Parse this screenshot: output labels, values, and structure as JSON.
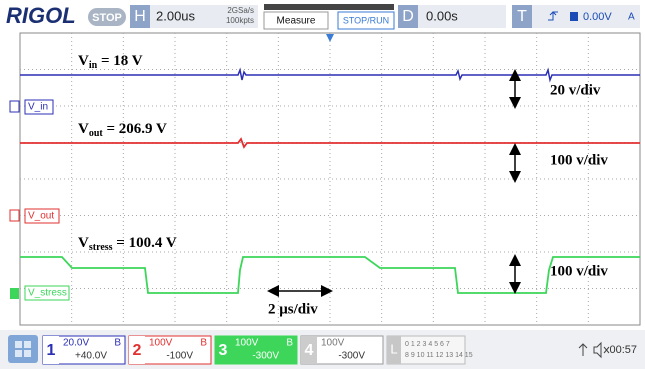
{
  "header": {
    "brand": "RIGOL",
    "state": "STOP",
    "h_key": "H",
    "timebase": "2.00us",
    "sample_rate": "2GSa/s",
    "memory": "100kpts",
    "measure": "Measure",
    "run": "STOP/RUN",
    "d_key": "D",
    "delay": "0.00s",
    "t_key": "T",
    "trigger_level": "0.00V",
    "trigger_mode": "A"
  },
  "annotations": [
    {
      "symbol": "V",
      "subscript": "in",
      "rest": " = 18 V"
    },
    {
      "text": "20 v/div"
    },
    {
      "symbol": "V",
      "subscript": "out",
      "rest": " = 206.9 V"
    },
    {
      "text": "100 v/div"
    },
    {
      "symbol": "V",
      "subscript": "stress",
      "rest": " = 100.4 V"
    },
    {
      "text": "100 v/div"
    },
    {
      "text": "2 μs/div"
    }
  ],
  "channel_labels": [
    "V_in",
    "V_out",
    "V_stress"
  ],
  "channels": [
    {
      "number": "1",
      "scale": "20.0V",
      "bw": "B",
      "offset": "+40.0V"
    },
    {
      "number": "2",
      "scale": "100V",
      "bw": "B",
      "offset": "-100V"
    },
    {
      "number": "3",
      "scale": "100V",
      "bw": "B",
      "offset": "-300V"
    },
    {
      "number": "4",
      "scale": "100V",
      "offset": "-300V"
    }
  ],
  "logic": {
    "key": "L",
    "row1": "0 1 2 3 4 5 6 7",
    "row2": "8 9 10 11 12 13 14 15"
  },
  "status": {
    "time": "00:57"
  }
}
